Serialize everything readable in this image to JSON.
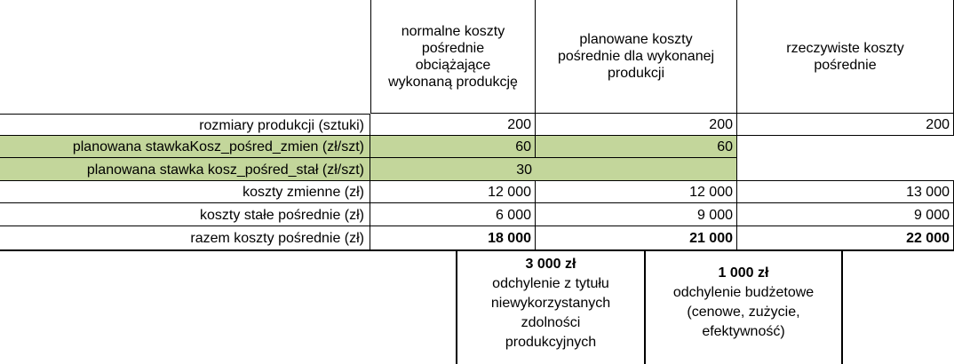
{
  "headers": {
    "normal": "normalne koszty\npośrednie\nobciążające\nwykonaną produkcję",
    "planned": "planowane koszty\npośrednie dla wykonanej\nprodukcji",
    "actual": "rzeczywiste koszty\npośrednie"
  },
  "rows": [
    {
      "label": "rozmiary produkcji (sztuki)",
      "normal": "200",
      "planned": "200",
      "actual": "200"
    },
    {
      "label": "planowana stawkaKosz_pośred_zmien (zł/szt)",
      "normal": "60",
      "planned": "60",
      "actual": ""
    },
    {
      "label": "planowana stawka kosz_pośred_stał (zł/szt)",
      "normal": "30",
      "planned": "",
      "actual": ""
    },
    {
      "label": "koszty zmienne (zł)",
      "normal": "12 000",
      "planned": "12 000",
      "actual": "13 000"
    },
    {
      "label": "koszty stałe pośrednie (zł)",
      "normal": "6 000",
      "planned": "9 000",
      "actual": "9 000"
    },
    {
      "label": "razem koszty pośrednie (zł)",
      "normal": "18 000",
      "planned": "21 000",
      "actual": "22 000"
    }
  ],
  "variances": {
    "capacity": {
      "amount": "3 000 zł",
      "description": "odchylenie z tytułu\nniewykorzystanych\nzdolności\nprodukcyjnych"
    },
    "budget": {
      "amount": "1 000 zł",
      "description": "odchylenie budżetowe\n(cenowe, zużycie,\nefektywność)"
    }
  },
  "colors": {
    "highlight": "#c3d69b",
    "border": "#000000"
  }
}
